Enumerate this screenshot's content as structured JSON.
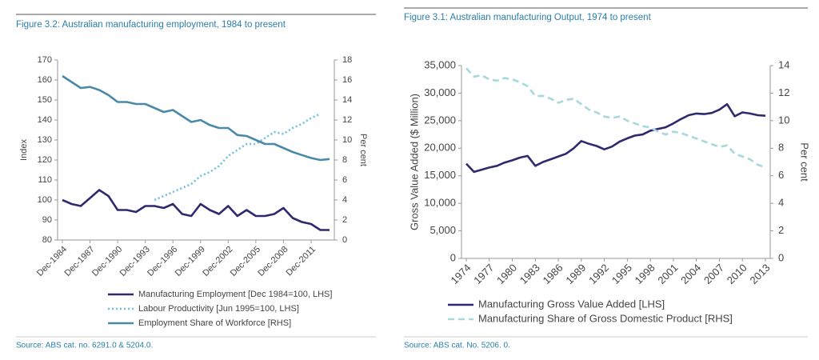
{
  "chart_data": [
    {
      "type": "line",
      "title": "Figure 3.2: Australian manufacturing employment, 1984 to present",
      "y_label": "Index",
      "y2_label": "Per cent",
      "categories": [
        "Dec-1984",
        null,
        null,
        "Dec-1987",
        null,
        null,
        "Dec-1990",
        null,
        null,
        "Dec-1993",
        null,
        null,
        "Dec-1996",
        null,
        null,
        "Dec-1999",
        null,
        null,
        "Dec-2002",
        null,
        null,
        "Dec-2005",
        null,
        null,
        "Dec-2008",
        null,
        null,
        "Dec-2011",
        null,
        null
      ],
      "ylim": [
        80,
        170
      ],
      "yticks": [
        80,
        90,
        100,
        110,
        120,
        130,
        140,
        150,
        160,
        170
      ],
      "y2lim": [
        0,
        18
      ],
      "y2ticks": [
        0,
        2,
        4,
        6,
        8,
        10,
        12,
        14,
        16,
        18
      ],
      "legend": "bottom",
      "series": [
        {
          "name": "Manufacturing Employment [Dec 1984=100, LHS]",
          "color": "#2e2a6e",
          "style": "solid",
          "values": [
            100,
            98,
            97,
            101,
            105,
            102,
            95,
            95,
            94,
            97,
            97,
            96,
            98,
            93,
            92,
            98,
            95,
            93,
            97,
            92,
            95,
            92,
            92,
            93,
            96,
            91,
            89,
            88,
            85,
            85
          ]
        },
        {
          "name": "Labour Productivity [Jun 1995=100, LHS]",
          "color": "#6cc0e0",
          "style": "dotted",
          "values": [
            null,
            null,
            null,
            null,
            null,
            null,
            null,
            null,
            null,
            null,
            100,
            102,
            104,
            106,
            108,
            112,
            114,
            117,
            122,
            125,
            128,
            128,
            131,
            134,
            133,
            136,
            138,
            141,
            143,
            null
          ]
        },
        {
          "name": "Employment Share of Workforce [RHS]",
          "color": "#4a8aa8",
          "style": "solid",
          "axis": "y2",
          "values": [
            16.4,
            15.8,
            15.2,
            15.3,
            15.0,
            14.5,
            13.8,
            13.8,
            13.6,
            13.6,
            13.2,
            12.8,
            13.0,
            12.4,
            11.8,
            12.0,
            11.5,
            11.2,
            11.2,
            10.5,
            10.4,
            10.0,
            9.6,
            9.6,
            9.2,
            8.8,
            8.5,
            8.2,
            8.0,
            8.1
          ]
        }
      ],
      "source": "Source: ABS cat. no. 6291.0 & 5204.0."
    },
    {
      "type": "line",
      "title": "Figure 3.1: Australian manufacturing Output, 1974 to present",
      "y_label": "Gross Value Added ($ Million)",
      "y2_label": "Per cent",
      "categories": [
        "1974",
        null,
        null,
        "1977",
        null,
        null,
        "1980",
        null,
        null,
        "1983",
        null,
        null,
        "1986",
        null,
        null,
        "1989",
        null,
        null,
        "1992",
        null,
        null,
        "1995",
        null,
        null,
        "1998",
        null,
        null,
        "2001",
        null,
        null,
        "2004",
        null,
        null,
        "2007",
        null,
        null,
        "2010",
        null,
        null,
        "2013"
      ],
      "ylim": [
        0,
        35000
      ],
      "yticks": [
        0,
        {
          "value": 5000,
          "label": "5,000"
        },
        {
          "value": 10000,
          "label": "10,000"
        },
        {
          "value": 15000,
          "label": "15,000"
        },
        {
          "value": 20000,
          "label": "20,000"
        },
        {
          "value": 25000,
          "label": "25,000"
        },
        {
          "value": 30000,
          "label": "30,000"
        },
        {
          "value": 35000,
          "label": "35,000"
        }
      ],
      "y2lim": [
        0,
        14
      ],
      "y2ticks": [
        0,
        2,
        4,
        6,
        8,
        10,
        12,
        14
      ],
      "legend": "bottom",
      "series": [
        {
          "name": "Manufacturing Gross Value Added [LHS]",
          "color": "#2e2a6e",
          "style": "solid",
          "values": [
            17200,
            15700,
            16100,
            16500,
            16800,
            17400,
            17800,
            18300,
            18600,
            16800,
            17500,
            18000,
            18500,
            19000,
            20000,
            21300,
            20800,
            20400,
            19800,
            20300,
            21200,
            21800,
            22300,
            22500,
            23200,
            23500,
            23800,
            24500,
            25300,
            26000,
            26300,
            26200,
            26400,
            27000,
            28000,
            25800,
            26500,
            26300,
            26000,
            25900
          ]
        },
        {
          "name": "Manufacturing Share of Gross Domestic Product [RHS]",
          "color": "#a8d8dc",
          "style": "dashed",
          "axis": "y2",
          "values": [
            13.8,
            13.2,
            13.3,
            13.0,
            12.9,
            13.1,
            13.0,
            12.8,
            12.5,
            11.8,
            11.8,
            11.6,
            11.3,
            11.5,
            11.6,
            11.2,
            10.8,
            10.6,
            10.3,
            10.2,
            10.3,
            10.0,
            9.8,
            9.6,
            9.5,
            9.2,
            9.0,
            9.2,
            9.1,
            8.9,
            8.7,
            8.5,
            8.3,
            8.1,
            8.2,
            7.6,
            7.4,
            7.2,
            6.8,
            6.6
          ]
        }
      ],
      "source": "Source: ABS cat. No. 5206. 0."
    }
  ]
}
